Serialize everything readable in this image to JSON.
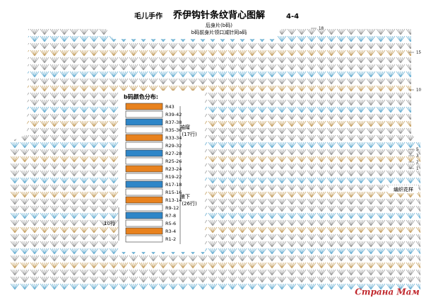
{
  "header": {
    "brand": "毛儿手作",
    "title": "乔伊钩针条纹背心图解",
    "page": "4-4",
    "subtitle": "后身片(b码)",
    "note": "b码前身片领口减针同a码"
  },
  "legend": {
    "title": "b码颜色分布:",
    "rows": [
      {
        "label": "R43",
        "color": "#e8821e"
      },
      {
        "label": "R39-42",
        "color": "#ffffff"
      },
      {
        "label": "R37-38",
        "color": "#2e86c8"
      },
      {
        "label": "R35-36",
        "color": "#ffffff"
      },
      {
        "label": "R33-34",
        "color": "#e8821e"
      },
      {
        "label": "R29-32",
        "color": "#ffffff"
      },
      {
        "label": "R27-28",
        "color": "#2e86c8"
      },
      {
        "label": "R25-26",
        "color": "#ffffff"
      },
      {
        "label": "R23-24",
        "color": "#e8821e"
      },
      {
        "label": "R19-22",
        "color": "#ffffff"
      },
      {
        "label": "R17-18",
        "color": "#2e86c8"
      },
      {
        "label": "R15-16",
        "color": "#ffffff"
      },
      {
        "label": "R13-14",
        "color": "#e8821e"
      },
      {
        "label": "R9-12",
        "color": "#ffffff"
      },
      {
        "label": "R7-8",
        "color": "#2e86c8"
      },
      {
        "label": "R5-6",
        "color": "#ffffff"
      },
      {
        "label": "R3-4",
        "color": "#e8821e"
      },
      {
        "label": "R1-2",
        "color": "#ffffff"
      }
    ]
  },
  "annotations": {
    "armhole": "袖窿",
    "armhole_rows": "(17行)",
    "underarm": "腋下",
    "underarm_rows": "(26行)",
    "ten_rows": "10行",
    "pattern": "编织花样"
  },
  "markers": [
    "18",
    "15",
    "10",
    "5",
    "3",
    "2",
    "1"
  ],
  "watermark": "Страна Мам"
}
